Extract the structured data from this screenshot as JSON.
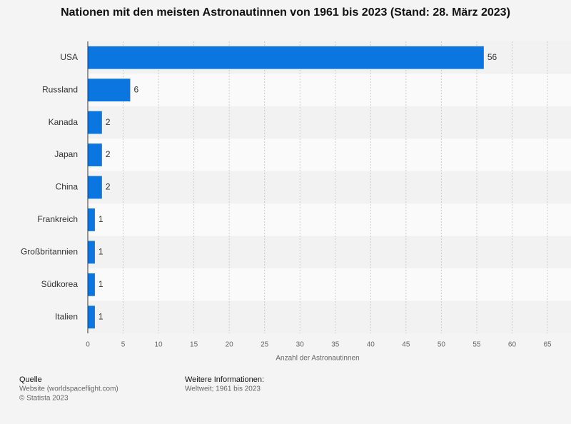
{
  "chart_data": {
    "type": "barh",
    "title": "Nationen mit den meisten Astronautinnen von 1961 bis 2023 (Stand: 28. März 2023)",
    "categories": [
      "USA",
      "Russland",
      "Kanada",
      "Japan",
      "China",
      "Frankreich",
      "Großbritannien",
      "Südkorea",
      "Italien"
    ],
    "values": [
      56,
      6,
      2,
      2,
      2,
      1,
      1,
      1,
      1
    ],
    "color": "#0b76e0",
    "xlabel": "Anzahl der Astronautinnen",
    "xlim": [
      0,
      65
    ],
    "xticks": [
      0,
      5,
      10,
      15,
      20,
      25,
      30,
      35,
      40,
      45,
      50,
      55,
      60,
      65
    ],
    "grid": true
  },
  "footer": {
    "source_title": "Quelle",
    "source_lines": [
      "Website (worldspaceflight.com)",
      "© Statista 2023"
    ],
    "info_title": "Weitere Informationen:",
    "info_lines": [
      "Weltweit; 1961 bis 2023"
    ]
  }
}
